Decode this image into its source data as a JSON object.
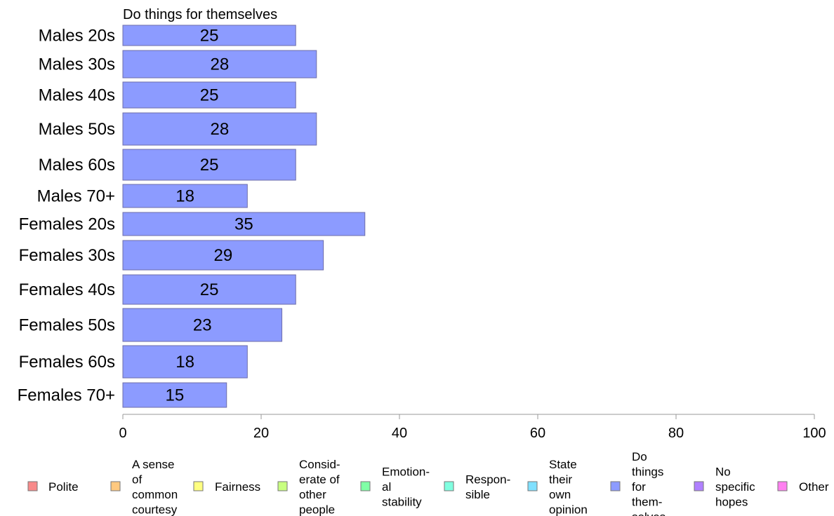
{
  "chart_data": {
    "type": "bar",
    "orientation": "horizontal",
    "title": "Do things for themselves",
    "categories": [
      "Males 20s",
      "Males 30s",
      "Males 40s",
      "Males 50s",
      "Males 60s",
      "Males 70+",
      "Females 20s",
      "Females 30s",
      "Females 40s",
      "Females 50s",
      "Females 60s",
      "Females 70+"
    ],
    "values": [
      25,
      28,
      25,
      28,
      25,
      18,
      35,
      29,
      25,
      23,
      18,
      15
    ],
    "value_labels": [
      "25",
      "28",
      "25",
      "28",
      "25",
      "18",
      "35",
      "29",
      "25",
      "23",
      "18",
      "15"
    ],
    "xlim": [
      0,
      100
    ],
    "xticks": [
      0,
      20,
      40,
      60,
      80,
      100
    ],
    "xtick_labels": [
      "0",
      "20",
      "40",
      "60",
      "80",
      "100"
    ],
    "grid": false,
    "bar_color": "#8c9bff",
    "bar_border": "#6e6ea8",
    "legend_position": "bottom",
    "legend": [
      {
        "lines": [
          "Polite"
        ],
        "color": "#f88a8a"
      },
      {
        "lines": [
          "A sense",
          "of",
          "common",
          "courtesy"
        ],
        "color": "#ffc980"
      },
      {
        "lines": [
          "Fairness"
        ],
        "color": "#ffff80"
      },
      {
        "lines": [
          "Consid-",
          "erate of",
          "other",
          "people"
        ],
        "color": "#c8ff80"
      },
      {
        "lines": [
          "Emotion-",
          "al",
          "stability"
        ],
        "color": "#80ffa6"
      },
      {
        "lines": [
          "Respon-",
          "sible"
        ],
        "color": "#80ffe0"
      },
      {
        "lines": [
          "State",
          "their",
          "own",
          "opinion"
        ],
        "color": "#80e0ff"
      },
      {
        "lines": [
          "Do",
          "things",
          "for",
          "them-",
          "selves"
        ],
        "color": "#8c9bff"
      },
      {
        "lines": [
          "No",
          "specific",
          "hopes"
        ],
        "color": "#b080ff"
      },
      {
        "lines": [
          "Other"
        ],
        "color": "#ff80f0"
      }
    ]
  }
}
